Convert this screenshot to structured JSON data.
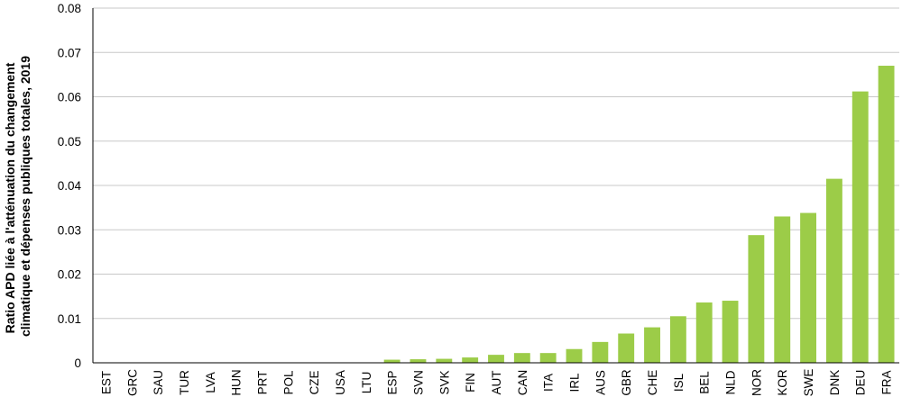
{
  "chart_data": {
    "type": "bar",
    "ylabel_lines": [
      "Ratio APD liée à l'atténuation du changement",
      "climatique et dépenses publiques totales, 2019"
    ],
    "categories": [
      "EST",
      "GRC",
      "SAU",
      "TUR",
      "LVA",
      "HUN",
      "PRT",
      "POL",
      "CZE",
      "USA",
      "LTU",
      "ESP",
      "SVN",
      "SVK",
      "FIN",
      "AUT",
      "CAN",
      "ITA",
      "IRL",
      "AUS",
      "GBR",
      "CHE",
      "ISL",
      "BEL",
      "NLD",
      "NOR",
      "KOR",
      "SWE",
      "DNK",
      "DEU",
      "FRA"
    ],
    "values": [
      0,
      0,
      0,
      0,
      0,
      0,
      0,
      0,
      0,
      0,
      0,
      0.0007,
      0.0008,
      0.0009,
      0.0012,
      0.0018,
      0.0022,
      0.0022,
      0.0031,
      0.0047,
      0.0066,
      0.008,
      0.0105,
      0.0136,
      0.014,
      0.0288,
      0.033,
      0.0338,
      0.0415,
      0.0612,
      0.067
    ],
    "ylim": [
      0,
      0.08
    ],
    "yticks": [
      "0",
      "0.01",
      "0.02",
      "0.03",
      "0.04",
      "0.05",
      "0.06",
      "0.07",
      "0.08"
    ],
    "grid": true,
    "bar_color": "#9ccc48",
    "grid_color": "#c8c8c8"
  }
}
